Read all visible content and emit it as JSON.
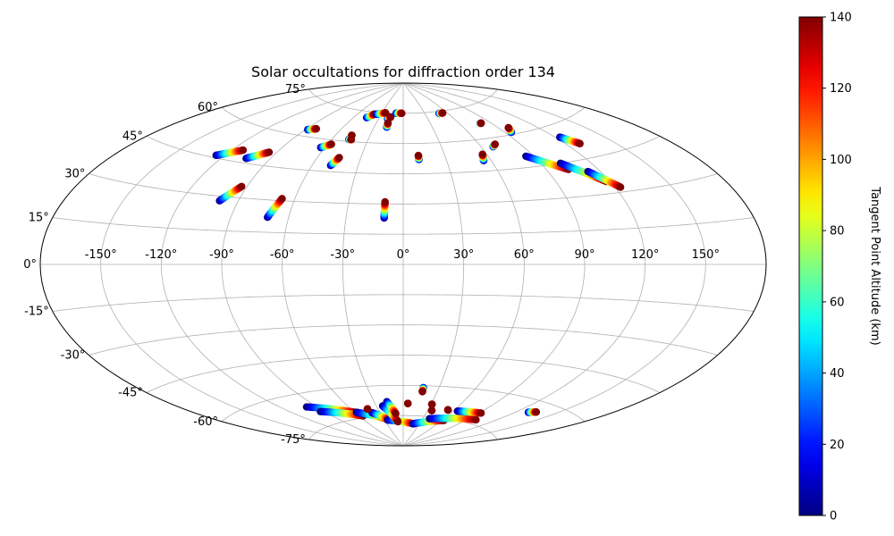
{
  "chart_data": {
    "type": "scatter",
    "projection": "aitoff",
    "title": "Solar occultations for diffraction order 134",
    "xlabel": "",
    "ylabel": "",
    "grid": true,
    "x_ticks": [
      -150,
      -120,
      -90,
      -60,
      -30,
      0,
      30,
      60,
      90,
      120,
      150
    ],
    "x_tick_labels": [
      "-150°",
      "-120°",
      "-90°",
      "-60°",
      "-30°",
      "0°",
      "30°",
      "60°",
      "90°",
      "120°",
      "150°"
    ],
    "y_ticks": [
      -75,
      -60,
      -45,
      -30,
      -15,
      0,
      15,
      30,
      45,
      60,
      75
    ],
    "y_tick_labels": [
      "-75°",
      "-60°",
      "-45°",
      "-30°",
      "-15°",
      "0°",
      "15°",
      "30°",
      "45°",
      "60°",
      "75°"
    ],
    "xlim": [
      -180,
      180
    ],
    "ylim": [
      -90,
      90
    ],
    "colorbar": {
      "label": "Tangent Point Altitude (km)",
      "range": [
        0,
        140
      ],
      "ticks": [
        0,
        20,
        40,
        60,
        80,
        100,
        120,
        140
      ],
      "tick_labels": [
        "0",
        "20",
        "40",
        "60",
        "80",
        "100",
        "120",
        "140"
      ],
      "colormap": "jet"
    },
    "point_series_note": "",
    "tracks": [
      {
        "lon0": -125,
        "lat0": 46,
        "lon1": -113,
        "lat1": 50
      },
      {
        "lon0": -105,
        "lat0": 47,
        "lon1": -95,
        "lat1": 51
      },
      {
        "lon0": -100,
        "lat0": 28,
        "lon1": -93,
        "lat1": 35
      },
      {
        "lon0": -71,
        "lat0": 22,
        "lon1": -67,
        "lat1": 31
      },
      {
        "lon0": -88,
        "lat0": 63,
        "lon1": -82,
        "lat1": 64
      },
      {
        "lon0": -63,
        "lat0": 56,
        "lon1": -57,
        "lat1": 58
      },
      {
        "lon0": -48,
        "lat0": 48,
        "lon1": -45,
        "lat1": 52
      },
      {
        "lon0": -46,
        "lat0": 61,
        "lon1": -44,
        "lat1": 61
      },
      {
        "lon0": -46,
        "lat0": 63,
        "lon1": -46,
        "lat1": 63
      },
      {
        "lon0": -10,
        "lat0": 23,
        "lon1": -10,
        "lat1": 31
      },
      {
        "lon0": -19,
        "lat0": 72,
        "lon1": -16,
        "lat1": 73
      },
      {
        "lon0": -17,
        "lat0": 68,
        "lon1": -17,
        "lat1": 70
      },
      {
        "lon0": -45,
        "lat0": 72,
        "lon1": -39,
        "lat1": 74
      },
      {
        "lon0": -36,
        "lat0": 74,
        "lon1": -25,
        "lat1": 75
      },
      {
        "lon0": -10,
        "lat0": 75,
        "lon1": -2,
        "lat1": 75
      },
      {
        "lon0": 11,
        "lat0": 52,
        "lon1": 11,
        "lat1": 54
      },
      {
        "lon0": 49,
        "lat0": 74,
        "lon1": 54,
        "lat1": 74
      },
      {
        "lon0": 55,
        "lat0": 50,
        "lon1": 57,
        "lat1": 53
      },
      {
        "lon0": 80,
        "lat0": 67,
        "lon1": 81,
        "lat1": 67
      },
      {
        "lon0": 69,
        "lat0": 56,
        "lon1": 72,
        "lat1": 57
      },
      {
        "lon0": 95,
        "lat0": 61,
        "lon1": 98,
        "lat1": 63
      },
      {
        "lon0": 85,
        "lat0": 50,
        "lon1": 103,
        "lat1": 42
      },
      {
        "lon0": 102,
        "lat0": 45,
        "lon1": 118,
        "lat1": 35
      },
      {
        "lon0": 113,
        "lat0": 40,
        "lon1": 123,
        "lat1": 32
      },
      {
        "lon0": 123,
        "lat0": 55,
        "lon1": 129,
        "lat1": 51
      },
      {
        "lon0": -99,
        "lat0": -66,
        "lon1": -59,
        "lat1": -72
      },
      {
        "lon0": -94,
        "lat0": -69,
        "lon1": -55,
        "lat1": -74
      },
      {
        "lon0": -58,
        "lat0": -72,
        "lon1": -22,
        "lat1": -77
      },
      {
        "lon0": -40,
        "lat0": -73,
        "lon1": -22,
        "lat1": -77
      },
      {
        "lon0": -25,
        "lat0": -77,
        "lon1": 20,
        "lat1": -79
      },
      {
        "lon0": -23,
        "lat0": -70,
        "lon1": -9,
        "lat1": -78
      },
      {
        "lon0": -17,
        "lat0": -68,
        "lon1": -10,
        "lat1": -74
      },
      {
        "lon0": 18,
        "lat0": -79,
        "lon1": 63,
        "lat1": -76
      },
      {
        "lon0": 40,
        "lat0": -76,
        "lon1": 100,
        "lat1": -73
      },
      {
        "lon0": 65,
        "lat0": -71,
        "lon1": 92,
        "lat1": -70
      },
      {
        "lon0": 130,
        "lat0": -65,
        "lon1": 135,
        "lat1": -64
      },
      {
        "lon0": 17,
        "lat0": -61,
        "lon1": 17,
        "lat1": -63
      },
      {
        "lon0": 5,
        "lat0": -69,
        "lon1": 5,
        "lat1": -69
      },
      {
        "lon0": 31,
        "lat0": -69,
        "lon1": 31,
        "lat1": -69
      },
      {
        "lon0": 35,
        "lat0": -72,
        "lon1": 35,
        "lat1": -72
      },
      {
        "lon0": -42,
        "lat0": -71,
        "lon1": -42,
        "lat1": -71
      },
      {
        "lon0": 53,
        "lat0": -71,
        "lon1": 53,
        "lat1": -71
      }
    ]
  }
}
